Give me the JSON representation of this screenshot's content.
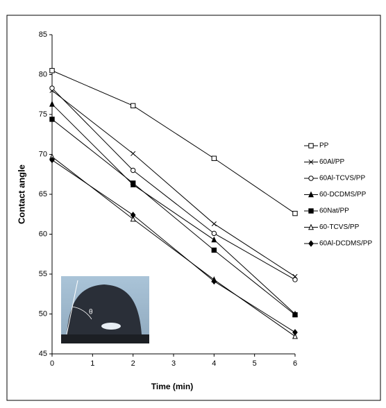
{
  "chart_data": {
    "type": "line",
    "xlabel": "Time (min)",
    "ylabel": "Contact angle",
    "x": [
      0,
      2,
      4,
      6
    ],
    "xlim": [
      0,
      6
    ],
    "xticks": [
      0,
      1,
      2,
      3,
      4,
      5,
      6
    ],
    "ylim": [
      45,
      85
    ],
    "yticks": [
      45,
      50,
      55,
      60,
      65,
      70,
      75,
      80,
      85
    ],
    "legend": "right",
    "inset_label": "θ",
    "series": [
      {
        "name": "PP",
        "color": "#000000",
        "marker": "square-open",
        "values": [
          80.5,
          76.1,
          69.5,
          62.6
        ]
      },
      {
        "name": "60Al/PP",
        "color": "#000000",
        "marker": "x",
        "values": [
          78.0,
          70.1,
          61.3,
          54.7
        ]
      },
      {
        "name": "60Al-TCVS/PP",
        "color": "#000000",
        "marker": "circle-open",
        "values": [
          78.3,
          68.0,
          60.1,
          54.3
        ]
      },
      {
        "name": "60-DCDMS/PP",
        "color": "#000000",
        "marker": "triangle",
        "values": [
          76.3,
          66.2,
          59.3,
          50.0
        ]
      },
      {
        "name": "60Nat/PP",
        "color": "#000000",
        "marker": "square",
        "values": [
          74.4,
          66.4,
          58.0,
          49.9
        ]
      },
      {
        "name": "60-TCVS/PP",
        "color": "#000000",
        "marker": "triangle-open",
        "values": [
          69.7,
          61.9,
          54.3,
          47.2
        ]
      },
      {
        "name": "60Al-DCDMS/PP",
        "color": "#000000",
        "marker": "diamond",
        "values": [
          69.3,
          62.4,
          54.1,
          47.7
        ]
      }
    ]
  }
}
